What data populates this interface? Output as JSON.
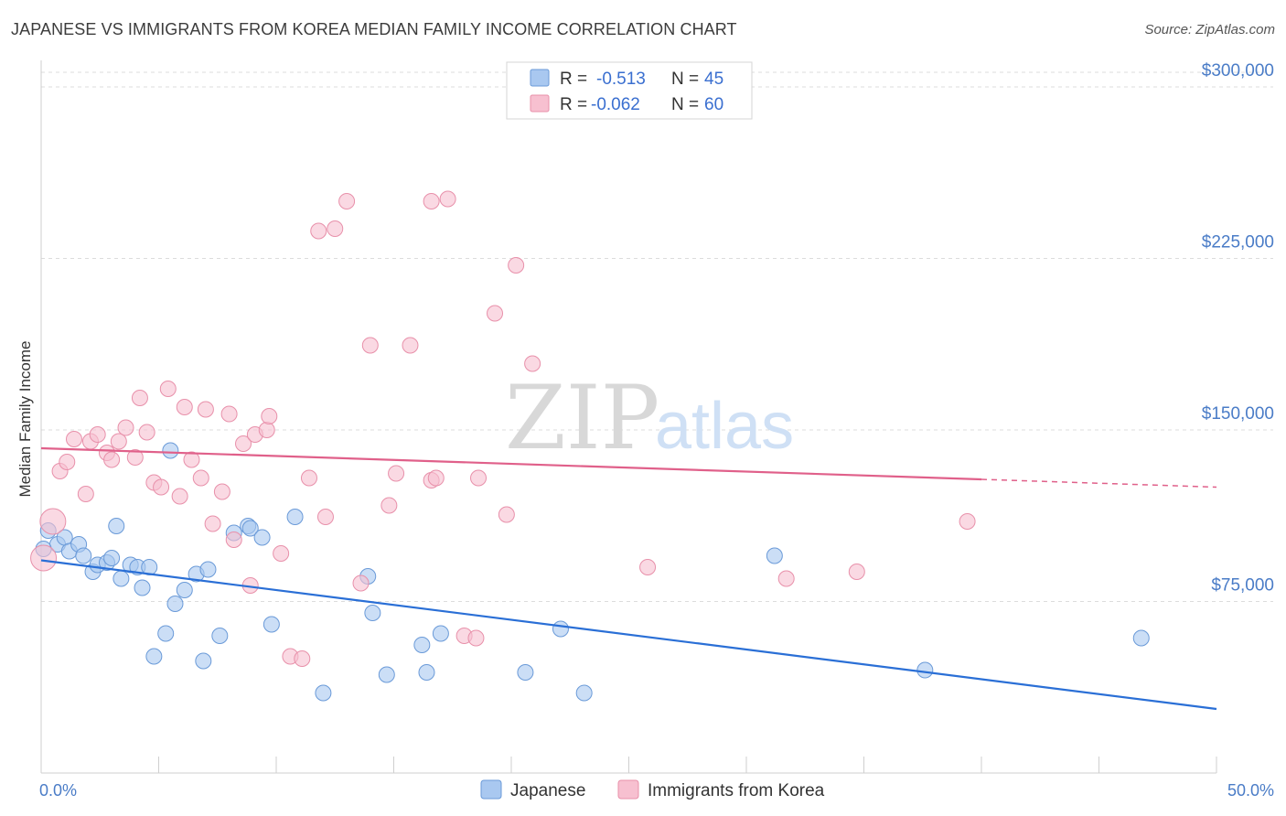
{
  "title": "JAPANESE VS IMMIGRANTS FROM KOREA MEDIAN FAMILY INCOME CORRELATION CHART",
  "source": "Source: ZipAtlas.com",
  "watermark": {
    "zip": "ZIP",
    "atlas": "atlas"
  },
  "legend_box": [
    {
      "r_label": "R = ",
      "r_value": "-0.513",
      "n_label": "N = ",
      "n_value": "45",
      "color": "#a9c8f0",
      "stroke": "#6a9ad8"
    },
    {
      "r_label": "R = ",
      "r_value": "-0.062",
      "n_label": "N = ",
      "n_value": "60",
      "color": "#f7c0d0",
      "stroke": "#e890aa"
    }
  ],
  "chart_data": {
    "type": "scatter",
    "title": "JAPANESE VS IMMIGRANTS FROM KOREA MEDIAN FAMILY INCOME CORRELATION CHART",
    "xlabel": "",
    "ylabel": "Median Family Income",
    "xlim": [
      0,
      50
    ],
    "ylim": [
      0,
      310000
    ],
    "x_tick_labels": [
      "0.0%",
      "50.0%"
    ],
    "y_ticks": [
      75000,
      150000,
      225000,
      300000
    ],
    "y_tick_labels": [
      "$75,000",
      "$150,000",
      "$225,000",
      "$300,000"
    ],
    "grid": "horizontal dashed",
    "legend_position": "top-center and bottom",
    "series": [
      {
        "name": "Japanese",
        "color": "#a9c8f0",
        "stroke": "#6a9ad8",
        "line_color": "#2a6fd6",
        "trend": {
          "x": [
            0,
            50
          ],
          "y": [
            93000,
            28000
          ],
          "dashed_from": null
        },
        "points": [
          [
            0.3,
            106000
          ],
          [
            0.7,
            100000
          ],
          [
            1.0,
            103000
          ],
          [
            1.2,
            97000
          ],
          [
            1.6,
            100000
          ],
          [
            1.8,
            95000
          ],
          [
            2.2,
            88000
          ],
          [
            2.4,
            91000
          ],
          [
            2.8,
            92000
          ],
          [
            3.0,
            94000
          ],
          [
            3.2,
            108000
          ],
          [
            3.4,
            85000
          ],
          [
            3.8,
            91000
          ],
          [
            4.1,
            90000
          ],
          [
            4.3,
            81000
          ],
          [
            4.6,
            90000
          ],
          [
            4.8,
            51000
          ],
          [
            5.3,
            61000
          ],
          [
            5.5,
            141000
          ],
          [
            5.7,
            74000
          ],
          [
            6.1,
            80000
          ],
          [
            6.6,
            87000
          ],
          [
            6.9,
            49000
          ],
          [
            7.1,
            89000
          ],
          [
            7.6,
            60000
          ],
          [
            8.2,
            105000
          ],
          [
            8.8,
            108000
          ],
          [
            8.9,
            107000
          ],
          [
            9.4,
            103000
          ],
          [
            9.8,
            65000
          ],
          [
            10.8,
            112000
          ],
          [
            12.0,
            35000
          ],
          [
            13.9,
            86000
          ],
          [
            14.1,
            70000
          ],
          [
            14.7,
            43000
          ],
          [
            16.2,
            56000
          ],
          [
            16.4,
            44000
          ],
          [
            17.0,
            61000
          ],
          [
            20.6,
            44000
          ],
          [
            22.1,
            63000
          ],
          [
            23.1,
            35000
          ],
          [
            31.2,
            95000
          ],
          [
            37.6,
            45000
          ],
          [
            46.8,
            59000
          ],
          [
            0.1,
            98000
          ]
        ]
      },
      {
        "name": "Immigrants from Korea",
        "color": "#f7c0d0",
        "stroke": "#e890aa",
        "line_color": "#e0608a",
        "trend": {
          "x": [
            0,
            50
          ],
          "y": [
            142000,
            125000
          ],
          "dashed_from": 40
        },
        "points": [
          [
            0.1,
            94000
          ],
          [
            0.5,
            110000
          ],
          [
            0.8,
            132000
          ],
          [
            1.1,
            136000
          ],
          [
            1.4,
            146000
          ],
          [
            1.9,
            122000
          ],
          [
            2.1,
            145000
          ],
          [
            2.4,
            148000
          ],
          [
            2.8,
            140000
          ],
          [
            3.0,
            137000
          ],
          [
            3.3,
            145000
          ],
          [
            3.6,
            151000
          ],
          [
            4.0,
            138000
          ],
          [
            4.2,
            164000
          ],
          [
            4.5,
            149000
          ],
          [
            4.8,
            127000
          ],
          [
            5.1,
            125000
          ],
          [
            5.4,
            168000
          ],
          [
            5.9,
            121000
          ],
          [
            6.1,
            160000
          ],
          [
            6.4,
            137000
          ],
          [
            6.8,
            129000
          ],
          [
            7.0,
            159000
          ],
          [
            7.3,
            109000
          ],
          [
            7.7,
            123000
          ],
          [
            8.0,
            157000
          ],
          [
            8.2,
            102000
          ],
          [
            8.6,
            144000
          ],
          [
            8.9,
            82000
          ],
          [
            9.1,
            148000
          ],
          [
            9.6,
            150000
          ],
          [
            9.7,
            156000
          ],
          [
            10.2,
            96000
          ],
          [
            10.6,
            51000
          ],
          [
            11.1,
            50000
          ],
          [
            11.4,
            129000
          ],
          [
            11.8,
            237000
          ],
          [
            12.1,
            112000
          ],
          [
            12.5,
            238000
          ],
          [
            13.0,
            250000
          ],
          [
            13.6,
            83000
          ],
          [
            14.0,
            187000
          ],
          [
            14.8,
            117000
          ],
          [
            15.1,
            131000
          ],
          [
            15.7,
            187000
          ],
          [
            16.6,
            128000
          ],
          [
            16.6,
            250000
          ],
          [
            16.8,
            129000
          ],
          [
            17.3,
            251000
          ],
          [
            18.0,
            60000
          ],
          [
            18.5,
            59000
          ],
          [
            18.6,
            129000
          ],
          [
            19.3,
            201000
          ],
          [
            19.8,
            113000
          ],
          [
            20.2,
            222000
          ],
          [
            20.9,
            179000
          ],
          [
            25.8,
            90000
          ],
          [
            31.7,
            85000
          ],
          [
            34.7,
            88000
          ],
          [
            39.4,
            110000
          ]
        ]
      }
    ]
  },
  "bottom_legend": [
    "Japanese",
    "Immigrants from Korea"
  ]
}
